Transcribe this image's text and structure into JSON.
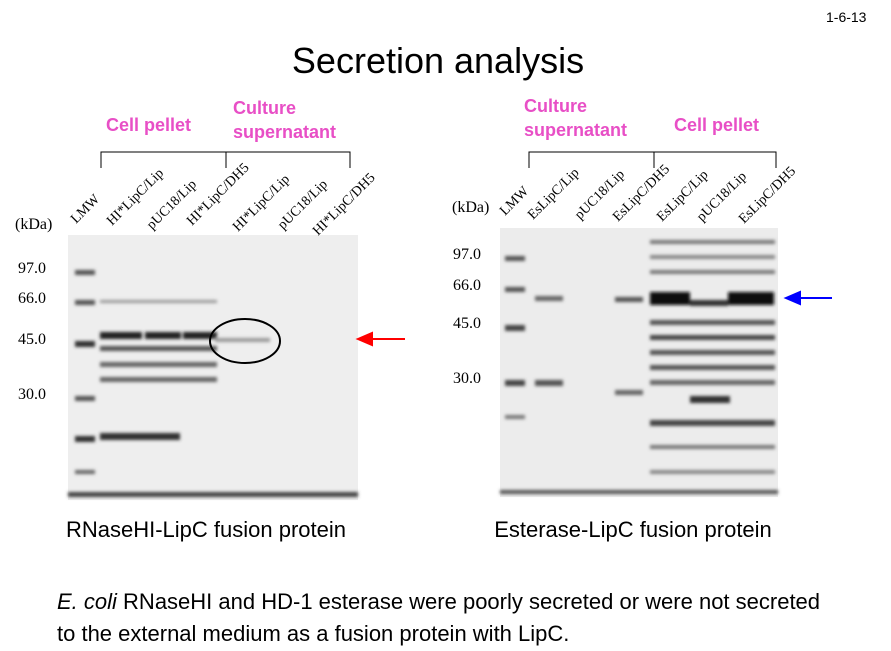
{
  "slide_number": "1-6-13",
  "title": "Secretion analysis",
  "panels": [
    {
      "groups": [
        "Cell pellet",
        "Culture supernatant"
      ],
      "lanes": [
        "LMW",
        "HI*LipC/Lip",
        "pUC18/Lip",
        "HI*LipC/DH5",
        "HI*LipC/Lip",
        "pUC18/Lip",
        "HI*LipC/DH5"
      ],
      "unit": "(kDa)",
      "markers": [
        "97.0",
        "66.0",
        "45.0",
        "30.0"
      ],
      "caption": "RNaseHI-LipC fusion protein"
    },
    {
      "groups": [
        "Culture supernatant",
        "Cell pellet"
      ],
      "lanes": [
        "LMW",
        "EsLipC/Lip",
        "pUC18/Lip",
        "EsLipC/DH5",
        "EsLipC/Lip",
        "pUC18/Lip",
        "EsLipC/DH5"
      ],
      "unit": "(kDa)",
      "markers": [
        "97.0",
        "66.0",
        "45.0",
        "30.0"
      ],
      "caption": "Esterase-LipC fusion protein"
    }
  ],
  "footnote": {
    "italic": "E. coli",
    "text": "RNaseHI and HD-1 esterase were poorly secreted or were not secreted to the external medium as a fusion protein with LipC."
  }
}
